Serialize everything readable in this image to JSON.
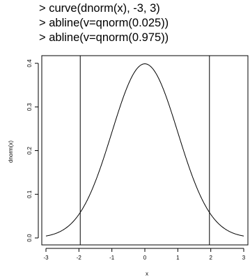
{
  "console": {
    "lines": [
      "> curve(dnorm(x), -3, 3)",
      "> abline(v=qnorm(0.025))",
      "> abline(v=qnorm(0.975))"
    ]
  },
  "chart_data": {
    "type": "line",
    "title": "",
    "xlabel": "x",
    "ylabel": "dnorm(x)",
    "xlim": [
      -3,
      3
    ],
    "ylim": [
      0,
      0.4
    ],
    "x_ticks": [
      "-3",
      "-2",
      "-1",
      "0",
      "1",
      "2",
      "3"
    ],
    "y_ticks": [
      "0.0",
      "0.1",
      "0.2",
      "0.3",
      "0.4"
    ],
    "series": [
      {
        "x": [
          -3.0,
          -2.75,
          -2.5,
          -2.25,
          -2.0,
          -1.75,
          -1.5,
          -1.25,
          -1.0,
          -0.75,
          -0.5,
          -0.25,
          0.0,
          0.25,
          0.5,
          0.75,
          1.0,
          1.25,
          1.5,
          1.75,
          2.0,
          2.25,
          2.5,
          2.75,
          3.0
        ],
        "y": [
          0.0044,
          0.0091,
          0.0175,
          0.0317,
          0.054,
          0.0863,
          0.1295,
          0.1826,
          0.242,
          0.3011,
          0.3521,
          0.3867,
          0.3989,
          0.3867,
          0.3521,
          0.3011,
          0.242,
          0.1826,
          0.1295,
          0.0863,
          0.054,
          0.0317,
          0.0175,
          0.0091,
          0.0044
        ]
      }
    ],
    "vlines": [
      -1.96,
      1.96
    ],
    "grid": false,
    "line_color": "#000000"
  }
}
